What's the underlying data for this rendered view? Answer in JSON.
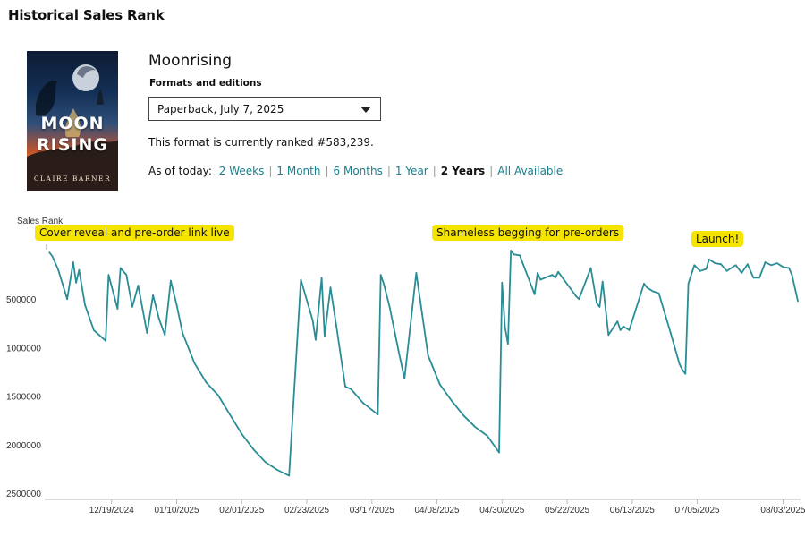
{
  "page": {
    "title": "Historical Sales Rank"
  },
  "book": {
    "title": "Moonrising",
    "cover": {
      "line1": "MOON",
      "line2": "RISING",
      "author": "CLAIRE BARNER"
    },
    "formats_label": "Formats and editions",
    "selected_format": "Paperback, July 7, 2025",
    "rank_text": "This format is currently ranked #583,239."
  },
  "range": {
    "prefix": "As of today:",
    "options": [
      "2 Weeks",
      "1 Month",
      "6 Months",
      "1 Year",
      "2 Years",
      "All Available"
    ],
    "active": "2 Years"
  },
  "annotations": {
    "cover_reveal": "Cover reveal and pre-order link live",
    "begging": "Shameless begging for pre-orders",
    "launch": "Launch!"
  },
  "colors": {
    "line": "#2a8d96",
    "link": "#1a7f8c",
    "highlight": "#f5e400"
  },
  "chart_data": {
    "type": "line",
    "ylabel": "Sales Rank",
    "y_inverted": true,
    "ylim": [
      0,
      2500000
    ],
    "yticks": [
      500000,
      1000000,
      1500000,
      2000000,
      2500000
    ],
    "xlim": [
      "2024-11-26",
      "2025-08-08"
    ],
    "xticks": [
      "12/19/2024",
      "01/10/2025",
      "02/01/2025",
      "02/23/2025",
      "03/17/2025",
      "04/08/2025",
      "04/30/2025",
      "05/22/2025",
      "06/13/2025",
      "07/05/2025",
      "08/03/2025"
    ],
    "series": [
      {
        "x": [
          "2024-11-28",
          "2024-11-29",
          "2024-12-01",
          "2024-12-04",
          "2024-12-06",
          "2024-12-07",
          "2024-12-08",
          "2024-12-10",
          "2024-12-13",
          "2024-12-17",
          "2024-12-18",
          "2024-12-21",
          "2024-12-22",
          "2024-12-24",
          "2024-12-26",
          "2024-12-28",
          "2024-12-31",
          "2025-01-02",
          "2025-01-04",
          "2025-01-06",
          "2025-01-08",
          "2025-01-10",
          "2025-01-12",
          "2025-01-16",
          "2025-01-20",
          "2025-01-24",
          "2025-01-28",
          "2025-02-01",
          "2025-02-05",
          "2025-02-09",
          "2025-02-13",
          "2025-02-17",
          "2025-02-21",
          "2025-02-25",
          "2025-02-26",
          "2025-02-28",
          "2025-03-01",
          "2025-03-03",
          "2025-03-05",
          "2025-03-08",
          "2025-03-10",
          "2025-03-14",
          "2025-03-19",
          "2025-03-20",
          "2025-03-21",
          "2025-03-23",
          "2025-03-26",
          "2025-03-28",
          "2025-04-01",
          "2025-04-05",
          "2025-04-09",
          "2025-04-13",
          "2025-04-17",
          "2025-04-21",
          "2025-04-25",
          "2025-04-29",
          "2025-04-30",
          "2025-05-01",
          "2025-05-02",
          "2025-05-03",
          "2025-05-04",
          "2025-05-06",
          "2025-05-11",
          "2025-05-12",
          "2025-05-13",
          "2025-05-17",
          "2025-05-18",
          "2025-05-19",
          "2025-05-25",
          "2025-05-26",
          "2025-05-30",
          "2025-06-01",
          "2025-06-02",
          "2025-06-03",
          "2025-06-05",
          "2025-06-08",
          "2025-06-09",
          "2025-06-10",
          "2025-06-12",
          "2025-06-17",
          "2025-06-18",
          "2025-06-19",
          "2025-06-20",
          "2025-06-22",
          "2025-06-26",
          "2025-06-29",
          "2025-06-30",
          "2025-07-01",
          "2025-07-02",
          "2025-07-04",
          "2025-07-06",
          "2025-07-08",
          "2025-07-09",
          "2025-07-11",
          "2025-07-13",
          "2025-07-15",
          "2025-07-18",
          "2025-07-20",
          "2025-07-22",
          "2025-07-24",
          "2025-07-26",
          "2025-07-28",
          "2025-07-30",
          "2025-08-01",
          "2025-08-03",
          "2025-08-05",
          "2025-08-06",
          "2025-08-08"
        ],
        "y": [
          20000,
          60000,
          200000,
          500000,
          120000,
          330000,
          200000,
          560000,
          820000,
          930000,
          250000,
          600000,
          180000,
          250000,
          580000,
          360000,
          850000,
          460000,
          700000,
          870000,
          310000,
          560000,
          850000,
          1160000,
          1360000,
          1490000,
          1690000,
          1890000,
          2050000,
          2180000,
          2260000,
          2320000,
          300000,
          720000,
          920000,
          280000,
          880000,
          380000,
          780000,
          1400000,
          1430000,
          1570000,
          1690000,
          250000,
          340000,
          580000,
          1030000,
          1320000,
          230000,
          1080000,
          1380000,
          1550000,
          1700000,
          1820000,
          1910000,
          2080000,
          330000,
          790000,
          960000,
          0,
          40000,
          50000,
          450000,
          230000,
          300000,
          250000,
          280000,
          220000,
          470000,
          500000,
          180000,
          540000,
          580000,
          320000,
          870000,
          730000,
          820000,
          780000,
          820000,
          340000,
          380000,
          400000,
          420000,
          440000,
          850000,
          1170000,
          1230000,
          1270000,
          340000,
          150000,
          210000,
          190000,
          90000,
          130000,
          140000,
          210000,
          150000,
          230000,
          140000,
          280000,
          280000,
          120000,
          150000,
          130000,
          170000,
          180000,
          250000,
          520000
        ]
      }
    ]
  }
}
